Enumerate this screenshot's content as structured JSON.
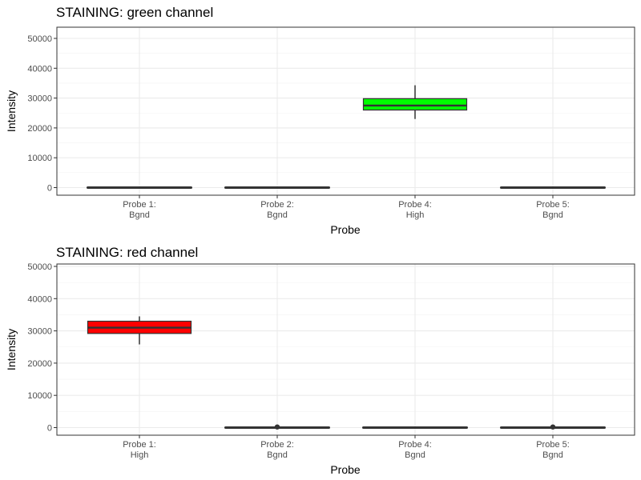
{
  "chart_data": [
    {
      "type": "boxplot",
      "title": "STAINING: green channel",
      "xlabel": "Probe",
      "ylabel": "Intensity",
      "ylim": [
        0,
        50000
      ],
      "yticks": [
        "0",
        "10000",
        "20000",
        "30000",
        "40000",
        "50000"
      ],
      "categories": [
        {
          "line1": "Probe 1:",
          "line2": "Bgnd"
        },
        {
          "line1": "Probe 2:",
          "line2": "Bgnd"
        },
        {
          "line1": "Probe 4:",
          "line2": "High"
        },
        {
          "line1": "Probe 5:",
          "line2": "Bgnd"
        }
      ],
      "boxes": [
        {
          "min": 0,
          "q1": 0,
          "median": 0,
          "q3": 0,
          "max": 0,
          "fill": "#666666",
          "outliers": []
        },
        {
          "min": 0,
          "q1": 0,
          "median": 0,
          "q3": 0,
          "max": 0,
          "fill": "#666666",
          "outliers": []
        },
        {
          "min": 23000,
          "q1": 26000,
          "median": 27500,
          "q3": 29800,
          "max": 34300,
          "fill": "#00ff00",
          "outliers": []
        },
        {
          "min": 0,
          "q1": 0,
          "median": 0,
          "q3": 0,
          "max": 0,
          "fill": "#666666",
          "outliers": []
        }
      ],
      "grid": true
    },
    {
      "type": "boxplot",
      "title": "STAINING: red channel",
      "xlabel": "Probe",
      "ylabel": "Intensity",
      "ylim": [
        0,
        50000
      ],
      "yticks": [
        "0",
        "10000",
        "20000",
        "30000",
        "40000",
        "50000"
      ],
      "categories": [
        {
          "line1": "Probe 1:",
          "line2": "High"
        },
        {
          "line1": "Probe 2:",
          "line2": "Bgnd"
        },
        {
          "line1": "Probe 4:",
          "line2": "Bgnd"
        },
        {
          "line1": "Probe 5:",
          "line2": "Bgnd"
        }
      ],
      "boxes": [
        {
          "min": 25800,
          "q1": 29200,
          "median": 31000,
          "q3": 33000,
          "max": 34500,
          "fill": "#ff0000",
          "outliers": []
        },
        {
          "min": 0,
          "q1": 0,
          "median": 0,
          "q3": 0,
          "max": 0,
          "fill": "#666666",
          "outliers": [
            200
          ]
        },
        {
          "min": 0,
          "q1": 0,
          "median": 0,
          "q3": 0,
          "max": 0,
          "fill": "#666666",
          "outliers": []
        },
        {
          "min": 0,
          "q1": 0,
          "median": 0,
          "q3": 0,
          "max": 0,
          "fill": "#666666",
          "outliers": [
            200
          ]
        }
      ],
      "grid": true
    }
  ]
}
